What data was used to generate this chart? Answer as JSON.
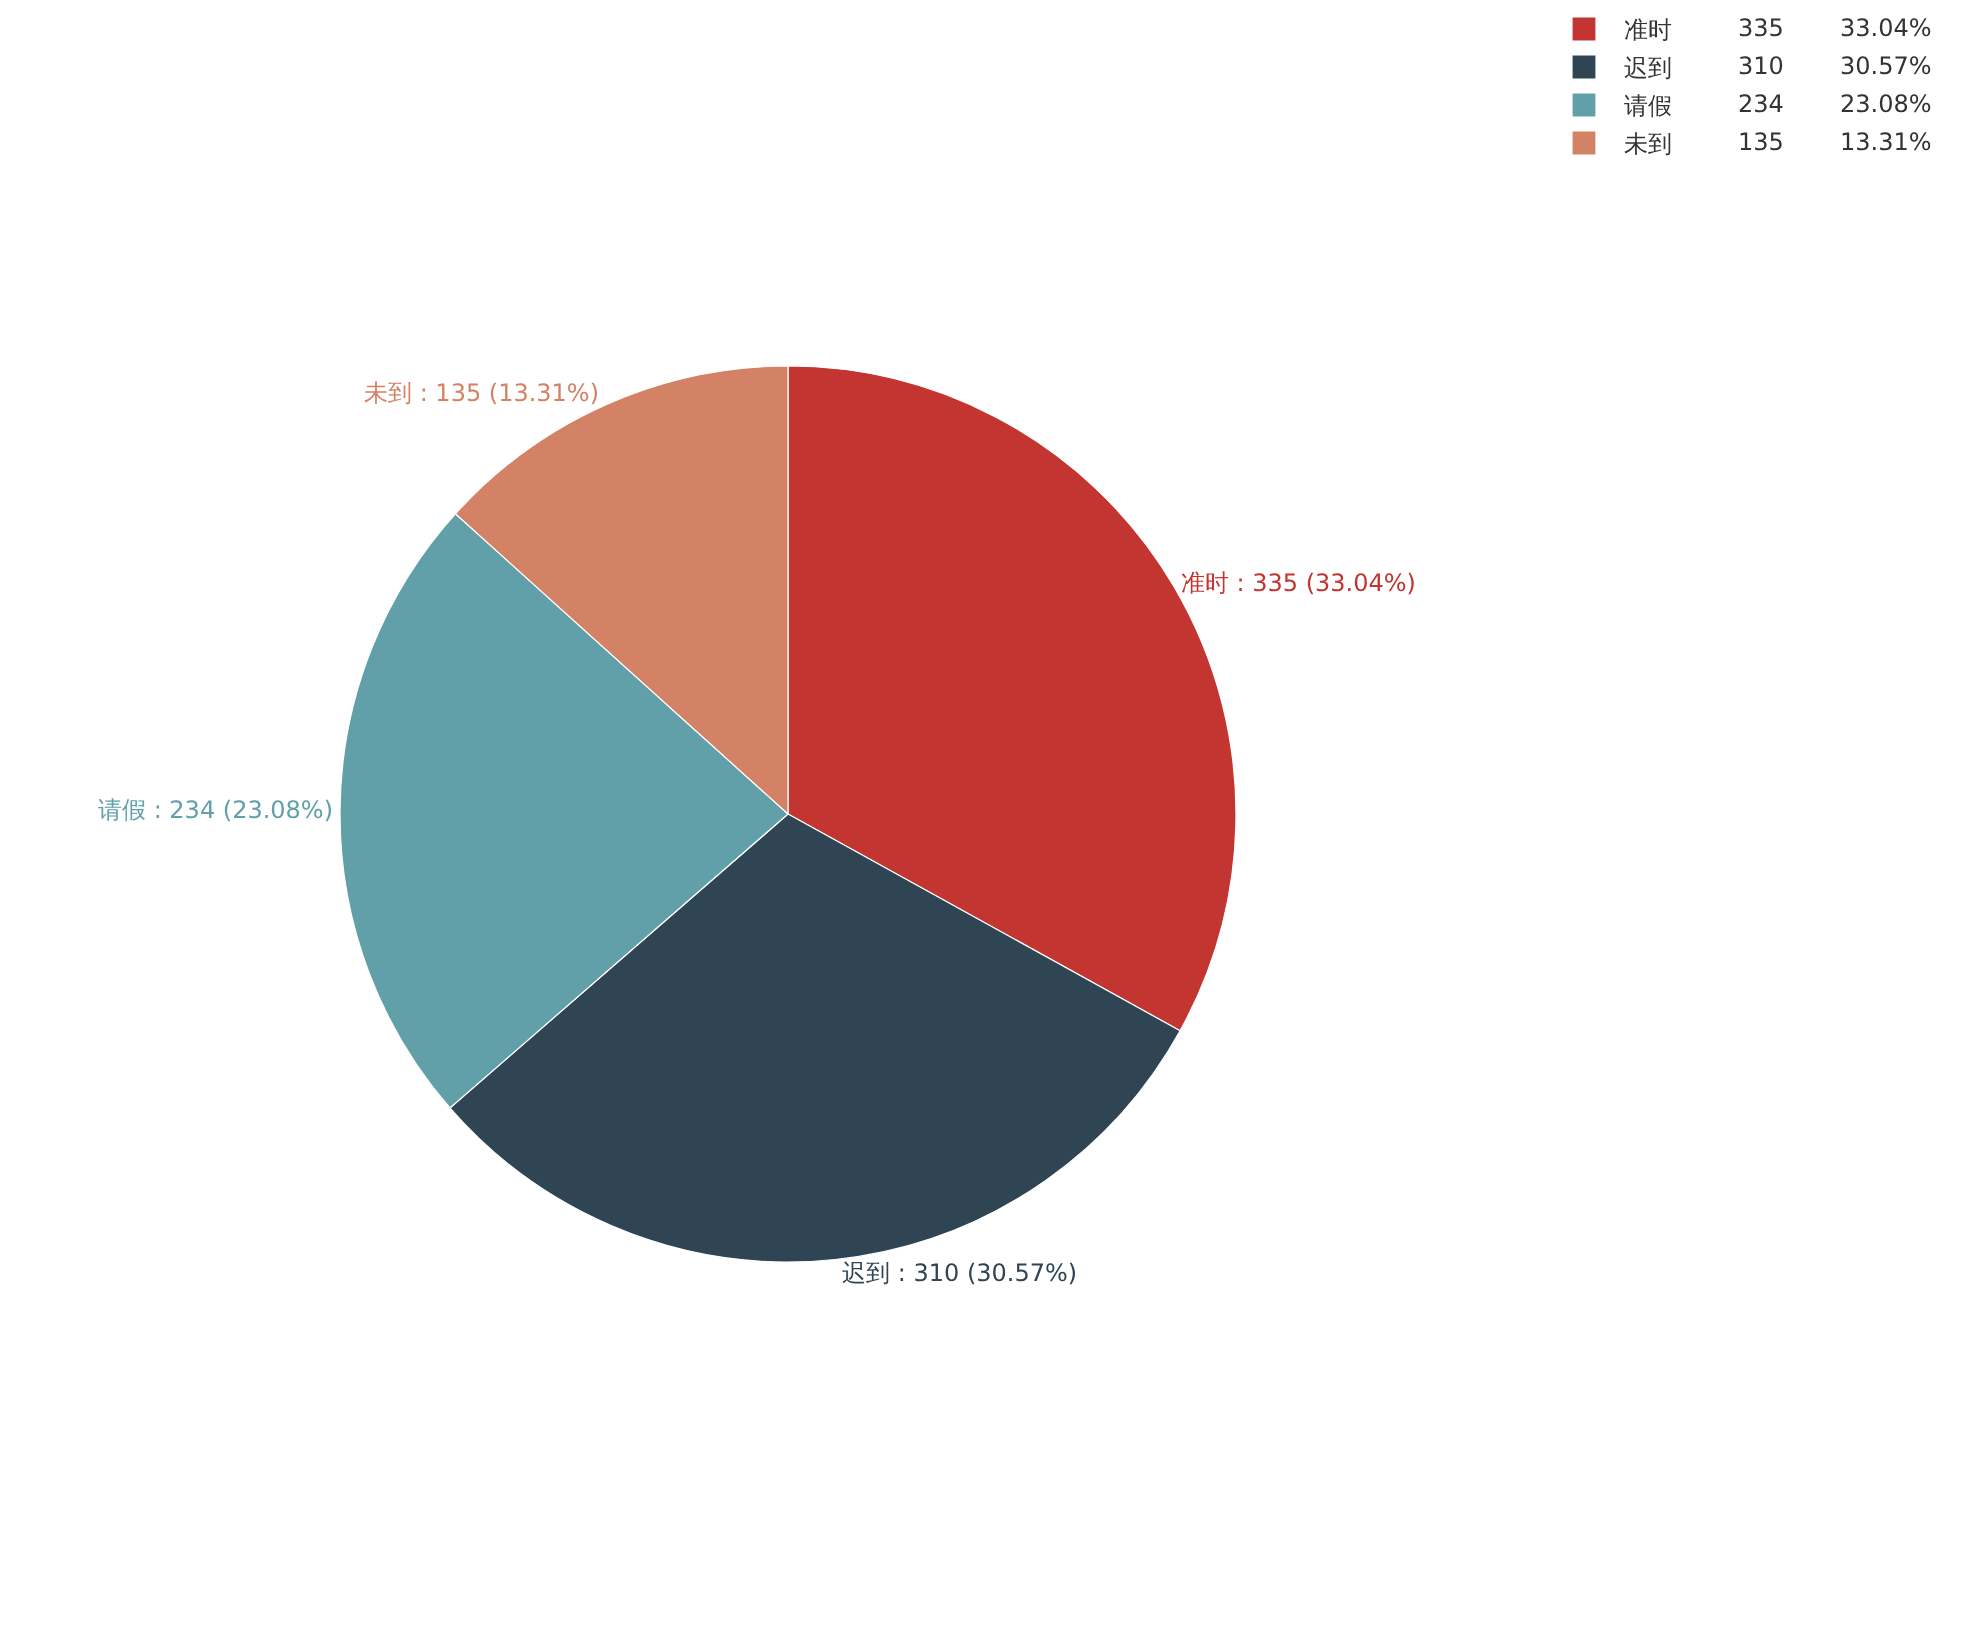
{
  "chart_data": {
    "type": "pie",
    "categories": [
      "准时",
      "迟到",
      "请假",
      "未到"
    ],
    "values": [
      335,
      310,
      234,
      135
    ],
    "colors": [
      "#c23531",
      "#2f4554",
      "#61a0a8",
      "#d48265"
    ],
    "value_labels": [
      "准时 : 335 (33.04%)",
      "迟到 : 310 (30.57%)",
      "请假 : 234 (23.08%)",
      "未到 : 135 (13.31%)"
    ],
    "data_labels": true,
    "annotations": [
      "335",
      "33.04%",
      "310",
      "30.57%",
      "234",
      "23.08%",
      "135",
      "13.31%"
    ],
    "legend": "top right"
  }
}
